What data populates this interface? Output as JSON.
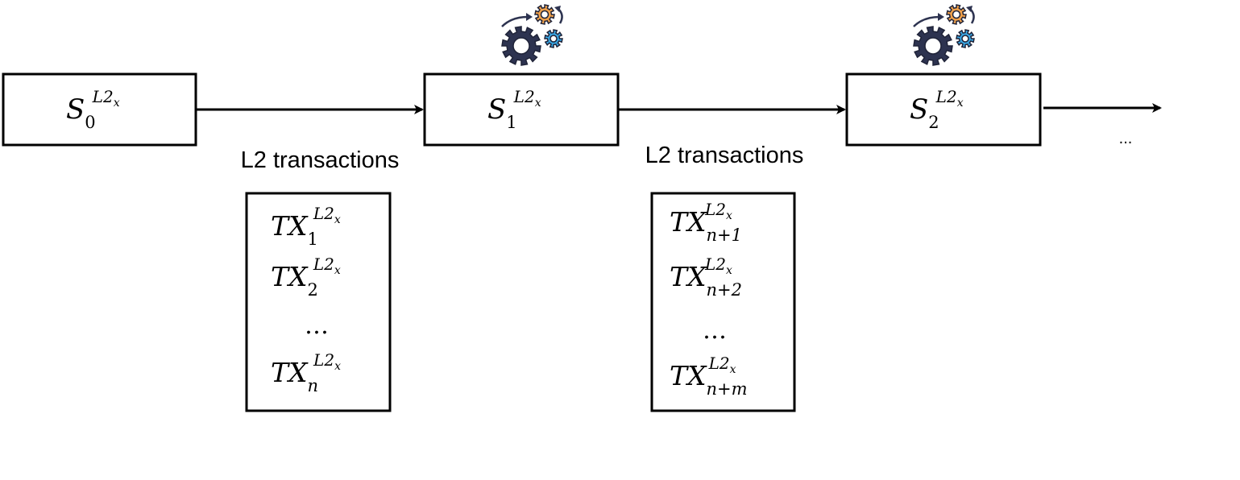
{
  "states": [
    {
      "base": "S",
      "sub": "0",
      "sup_main": "L2",
      "sup_sub": "x"
    },
    {
      "base": "S",
      "sub": "1",
      "sup_main": "L2",
      "sup_sub": "x"
    },
    {
      "base": "S",
      "sub": "2",
      "sup_main": "L2",
      "sup_sub": "x"
    }
  ],
  "transitions": [
    {
      "label": "L2 transactions"
    },
    {
      "label": "L2 transactions"
    }
  ],
  "tx_groups": [
    {
      "items": [
        {
          "base": "TX",
          "sub": "1",
          "sup_main": "L2",
          "sup_sub": "x"
        },
        {
          "base": "TX",
          "sub": "2",
          "sup_main": "L2",
          "sup_sub": "x"
        },
        {
          "ellipsis": "…"
        },
        {
          "base": "TX",
          "sub": "n",
          "sup_main": "L2",
          "sup_sub": "x"
        }
      ]
    },
    {
      "items": [
        {
          "base": "TX",
          "sub": "n+1",
          "sup_main": "L2",
          "sup_sub": "x"
        },
        {
          "base": "TX",
          "sub": "n+2",
          "sup_main": "L2",
          "sup_sub": "x"
        },
        {
          "ellipsis": "…"
        },
        {
          "base": "TX",
          "sub": "n+m",
          "sup_main": "L2",
          "sup_sub": "x"
        }
      ]
    }
  ],
  "continuation": "...",
  "icons": [
    "gears-icon",
    "gears-icon"
  ],
  "colors": {
    "gear_dark": "#2d3350",
    "gear_orange": "#f0a14a",
    "gear_blue": "#39a7e4"
  }
}
